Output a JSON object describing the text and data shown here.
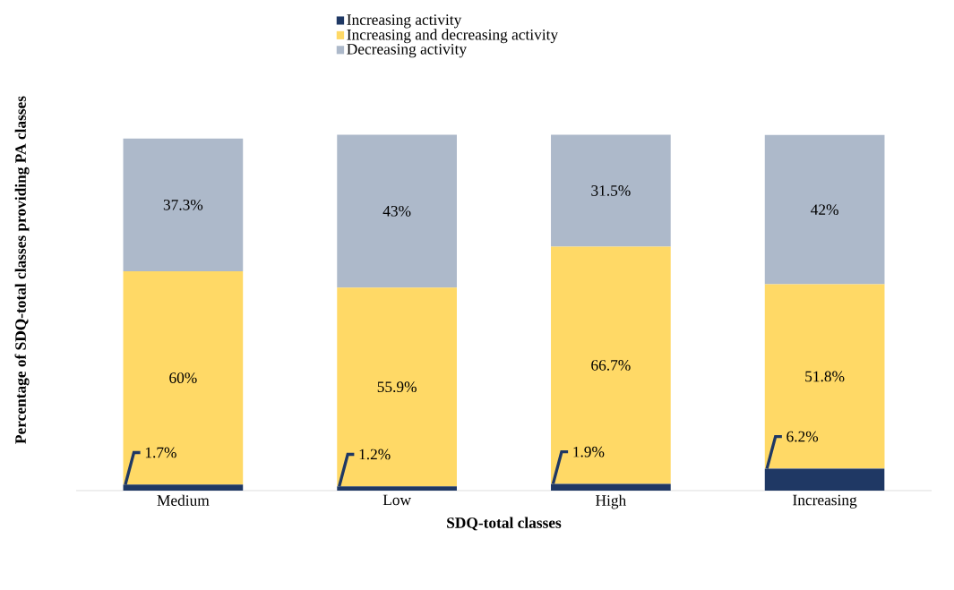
{
  "chart_data": {
    "type": "bar",
    "stacked": true,
    "xlabel": "SDQ-total classes",
    "ylabel": "Percentage of SDQ-total classes providing PA classes",
    "categories": [
      "Medium",
      "Low",
      "High",
      "Increasing"
    ],
    "series": [
      {
        "name": "Increasing activity",
        "color": "#1f3864",
        "values": [
          1.7,
          1.2,
          1.9,
          6.2
        ],
        "value_labels": [
          "1.7%",
          "1.2%",
          "1.9%",
          "6.2%"
        ]
      },
      {
        "name": "Increasing and decreasing activity",
        "color": "#ffd966",
        "values": [
          60,
          55.9,
          66.7,
          51.8
        ],
        "value_labels": [
          "60%",
          "55.9%",
          "66.7%",
          "51.8%"
        ]
      },
      {
        "name": "Decreasing activity",
        "color": "#adb9ca",
        "values": [
          37.3,
          43,
          31.5,
          42
        ],
        "value_labels": [
          "37.3%",
          "43%",
          "31.5%",
          "42%"
        ]
      }
    ],
    "legend": "top",
    "tick_labels": "x"
  }
}
